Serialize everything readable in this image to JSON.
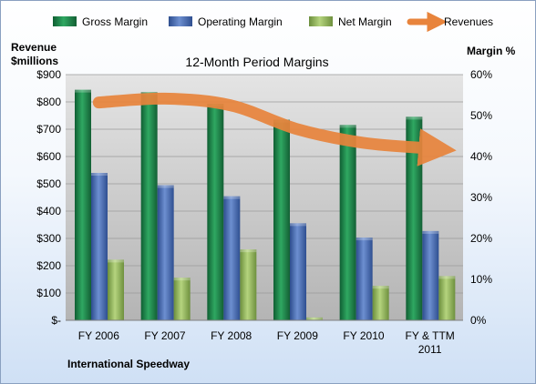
{
  "chart_data": {
    "type": "bar",
    "title": "12-Month Period Margins",
    "y_left_label_line1": "Revenue",
    "y_left_label_line2": "$millions",
    "y_right_label": "Margin %",
    "footer": "International Speedway",
    "categories": [
      {
        "line1": "FY 2006",
        "line2": ""
      },
      {
        "line1": "FY 2007",
        "line2": ""
      },
      {
        "line1": "FY 2008",
        "line2": ""
      },
      {
        "line1": "FY 2009",
        "line2": ""
      },
      {
        "line1": "FY 2010",
        "line2": ""
      },
      {
        "line1": "FY & TTM",
        "line2": "2011"
      }
    ],
    "y_left_ticks": [
      "$-",
      "$100",
      "$200",
      "$300",
      "$400",
      "$500",
      "$600",
      "$700",
      "$800",
      "$900"
    ],
    "y_right_ticks": [
      "0%",
      "10%",
      "20%",
      "30%",
      "40%",
      "50%",
      "60%"
    ],
    "y_left_range": [
      0,
      900
    ],
    "y_right_range": [
      0,
      60
    ],
    "series": [
      {
        "name": "Gross Margin",
        "axis": "right",
        "color": "#1f8a4c",
        "values": [
          56.3,
          55.7,
          52.9,
          49.0,
          47.7,
          49.7
        ]
      },
      {
        "name": "Operating Margin",
        "axis": "right",
        "color": "#4f72b8",
        "values": [
          36.0,
          33.0,
          30.3,
          23.7,
          20.2,
          21.8
        ]
      },
      {
        "name": "Net Margin",
        "axis": "right",
        "color": "#8fb35a",
        "values": [
          14.8,
          10.4,
          17.3,
          0.7,
          8.4,
          10.8
        ]
      },
      {
        "name": "Revenues",
        "axis": "left",
        "color": "#e8843c",
        "type": "line",
        "values": [
          798,
          812,
          787,
          700,
          650,
          630
        ]
      }
    ],
    "legend_position": "top",
    "grid": true
  }
}
